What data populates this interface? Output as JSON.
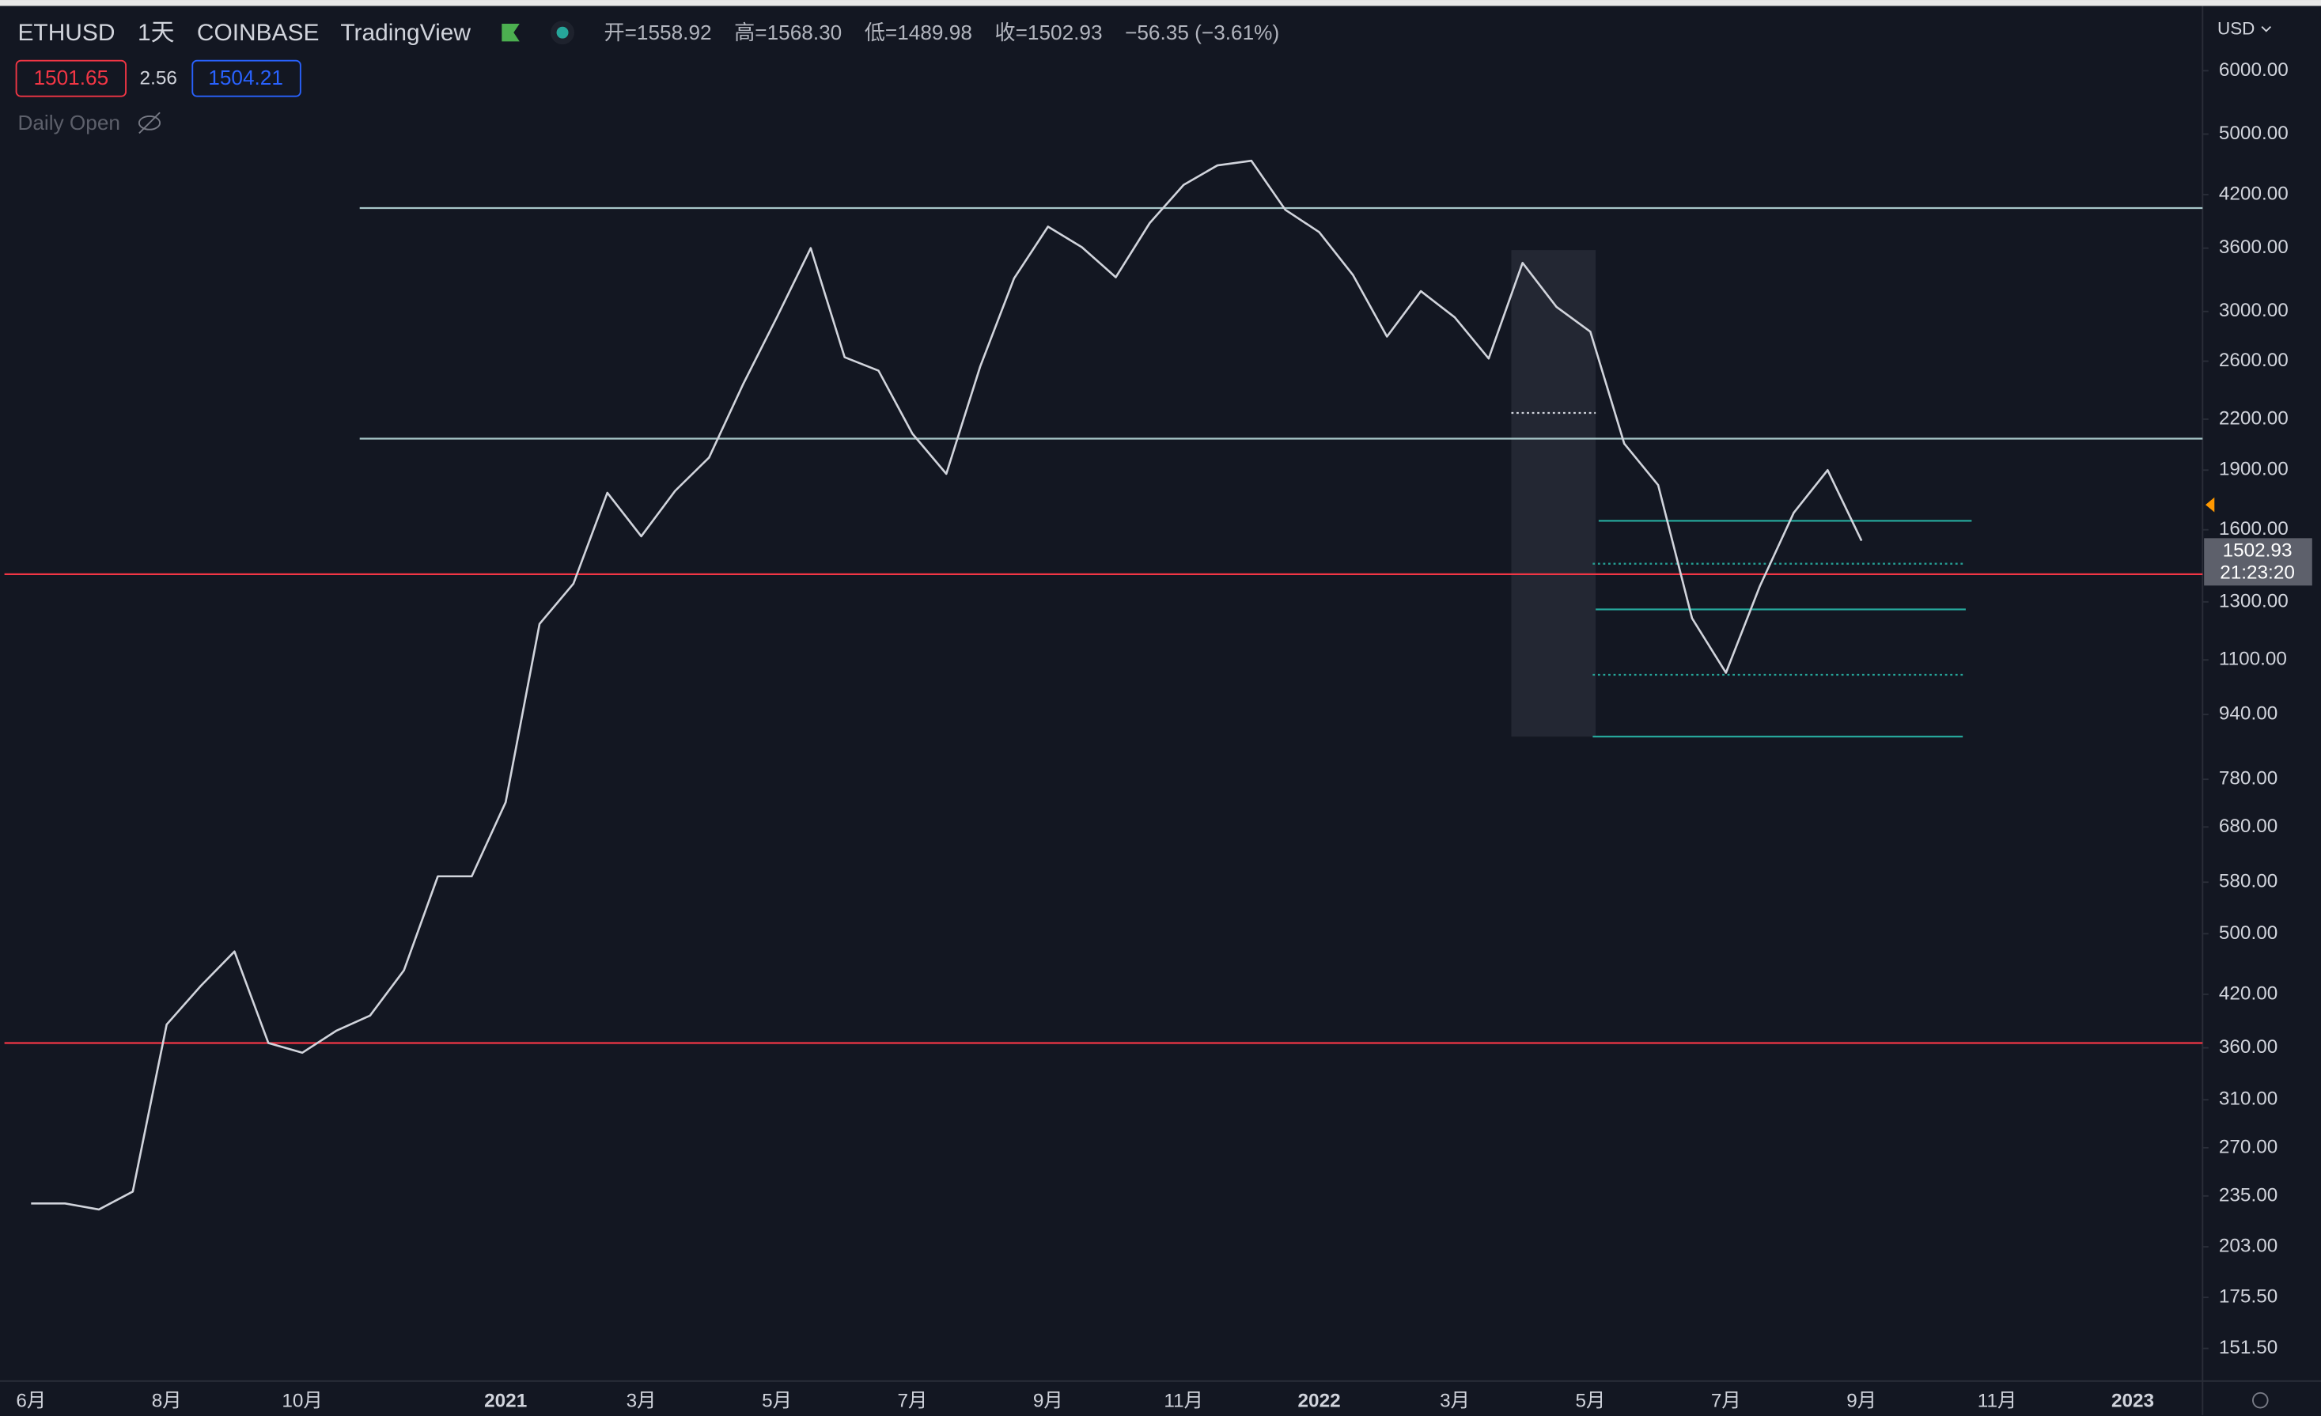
{
  "header": {
    "symbol": "ETHUSD",
    "interval": "1天",
    "exchange": "COINBASE",
    "source": "TradingView",
    "open": "开=1558.92",
    "high": "高=1568.30",
    "low": "低=1489.98",
    "close": "收=1502.93",
    "change": "−56.35 (−3.61%)",
    "sell": "1501.65",
    "spread": "2.56",
    "buy": "1504.21",
    "indicator": "Daily Open",
    "currency": "USD",
    "countdown": "21:23:20"
  },
  "chart_data": {
    "type": "line",
    "color": "#d1d4dc",
    "log_scale": true,
    "categories": [
      "6月",
      null,
      null,
      null,
      "8月",
      null,
      null,
      null,
      "10月",
      null,
      null,
      null,
      null,
      null,
      "2021",
      null,
      null,
      null,
      "3月",
      null,
      null,
      null,
      "5月",
      null,
      null,
      null,
      "7月",
      null,
      null,
      null,
      "9月",
      null,
      null,
      null,
      "11月",
      null,
      null,
      null,
      "2022",
      null,
      null,
      null,
      "3月",
      null,
      null,
      null,
      "5月",
      null,
      null,
      null,
      "7月",
      null,
      null,
      null,
      "9月",
      null,
      null,
      null,
      "11月",
      null,
      null,
      null,
      "2023",
      null,
      null
    ],
    "values": [
      230,
      230,
      226,
      238,
      385,
      430,
      475,
      365,
      355,
      378,
      395,
      450,
      590,
      590,
      730,
      1220,
      1370,
      1780,
      1570,
      1790,
      1970,
      2430,
      2950,
      3600,
      2630,
      2530,
      2110,
      1880,
      2560,
      3300,
      3830,
      3610,
      3310,
      3870,
      4320,
      4570,
      4630,
      4020,
      3770,
      3330,
      2790,
      3180,
      2950,
      2620,
      3450,
      3040,
      2830,
      2050,
      1820,
      1240,
      1060,
      1360,
      1680,
      1900,
      1550,
      null,
      null,
      null,
      null,
      null,
      null,
      null,
      null,
      null,
      null
    ],
    "ylim": [
      138.5,
      7200
    ],
    "yticks": [
      {
        "value": 6000,
        "label": "6000.00"
      },
      {
        "value": 5000,
        "label": "5000.00"
      },
      {
        "value": 4200,
        "label": "4200.00"
      },
      {
        "value": 3600,
        "label": "3600.00"
      },
      {
        "value": 3000,
        "label": "3000.00"
      },
      {
        "value": 2600,
        "label": "2600.00"
      },
      {
        "value": 2200,
        "label": "2200.00"
      },
      {
        "value": 1900,
        "label": "1900.00"
      },
      {
        "value": 1600,
        "label": "1600.00"
      },
      {
        "value": 1300,
        "label": "1300.00"
      },
      {
        "value": 1100,
        "label": "1100.00"
      },
      {
        "value": 940,
        "label": "940.00"
      },
      {
        "value": 780,
        "label": "780.00"
      },
      {
        "value": 680,
        "label": "680.00"
      },
      {
        "value": 580,
        "label": "580.00"
      },
      {
        "value": 500,
        "label": "500.00"
      },
      {
        "value": 420,
        "label": "420.00"
      },
      {
        "value": 360,
        "label": "360.00"
      },
      {
        "value": 310,
        "label": "310.00"
      },
      {
        "value": 270,
        "label": "270.00"
      },
      {
        "value": 235,
        "label": "235.00"
      },
      {
        "value": 203,
        "label": "203.00"
      },
      {
        "value": 175.5,
        "label": "175.50"
      },
      {
        "value": 151.5,
        "label": "151.50"
      }
    ],
    "last_price": 1502.93,
    "range_box": [
      882,
      3580
    ],
    "horizontal_lines": [
      {
        "value": 4040,
        "color": "#a8c7c9",
        "style": "solid"
      },
      {
        "value": 2080,
        "color": "#a8c7c9",
        "style": "solid"
      },
      {
        "value": 1408,
        "color": "#f23645",
        "style": "solid"
      },
      {
        "value": 365,
        "color": "#f23645",
        "style": "solid"
      },
      {
        "value": 1642,
        "color": "#26a69a",
        "style": "solid"
      },
      {
        "value": 1272,
        "color": "#26a69a",
        "style": "solid"
      },
      {
        "value": 882,
        "color": "#26a69a",
        "style": "solid"
      },
      {
        "value": 1451,
        "color": "#26a69a",
        "style": "dotted"
      },
      {
        "value": 1054,
        "color": "#26a69a",
        "style": "dotted"
      },
      {
        "value": 2240,
        "color": "#d1d4dc",
        "style": "dotted"
      }
    ]
  }
}
